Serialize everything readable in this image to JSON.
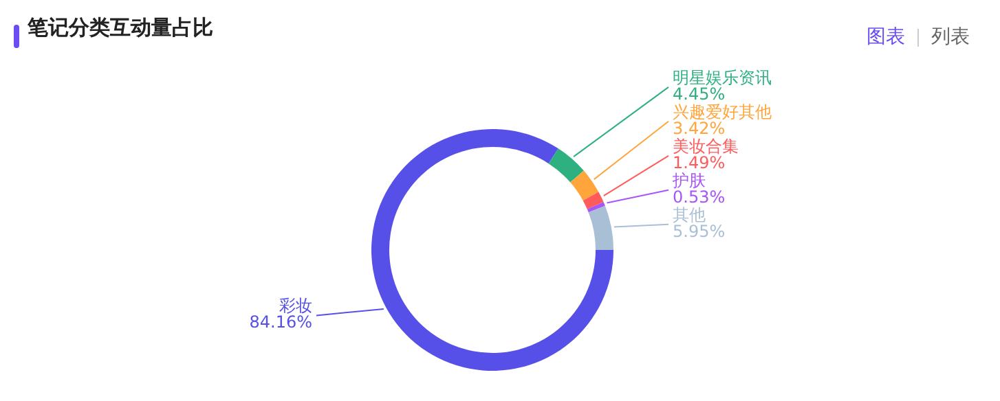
{
  "chart_data": {
    "type": "donut",
    "title": "笔记分类互动量占比",
    "categories": [
      "彩妆",
      "明星娱乐资讯",
      "兴趣爱好其他",
      "美妆合集",
      "护肤",
      "其他"
    ],
    "values": [
      84.16,
      4.45,
      3.42,
      1.49,
      0.53,
      5.95
    ],
    "value_labels": [
      "84.16%",
      "4.45%",
      "3.42%",
      "1.49%",
      "0.53%",
      "5.95%"
    ],
    "colors": [
      "#5650e8",
      "#2fb080",
      "#ffa53c",
      "#ff5b5b",
      "#a855f7",
      "#a9bfd6"
    ],
    "annotations": [
      "图表",
      "列表"
    ],
    "legend": false
  }
}
